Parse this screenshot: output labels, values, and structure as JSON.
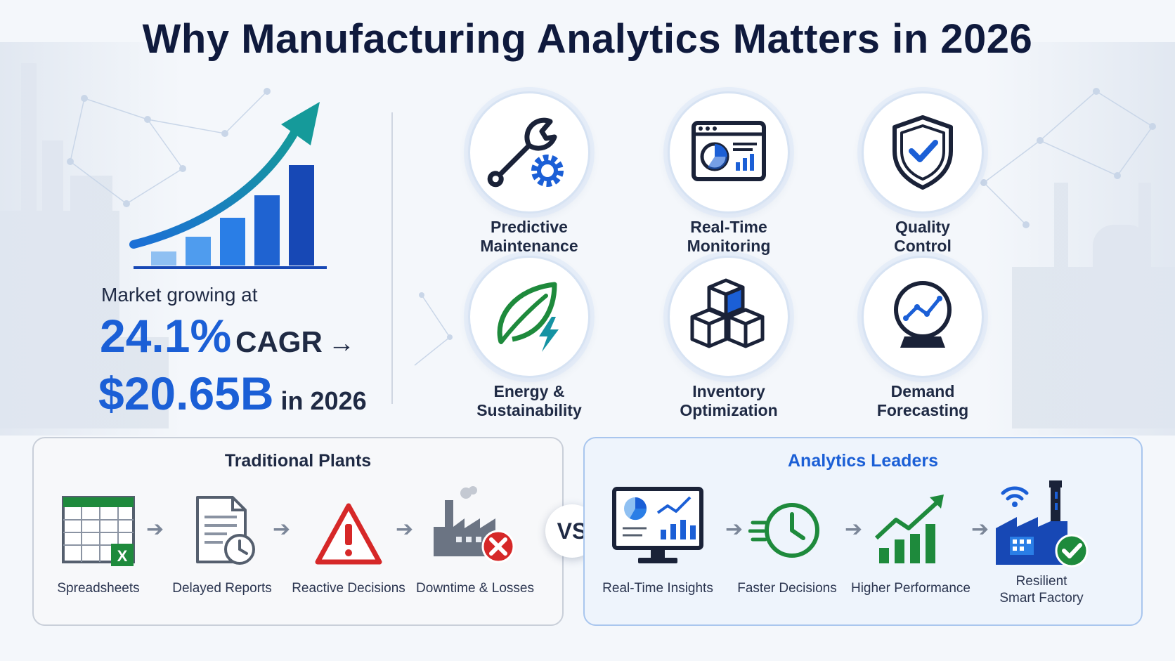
{
  "title": "Why Manufacturing Analytics Matters in 2026",
  "market": {
    "intro": "Market growing at",
    "cagr_value": "24.1%",
    "cagr_label": "CAGR",
    "arrow": "→",
    "market_value": "$20.65B",
    "market_year": "in 2026"
  },
  "features": [
    {
      "line1": "Predictive",
      "line2": "Maintenance",
      "icon": "wrench-gear-icon"
    },
    {
      "line1": "Real-Time",
      "line2": "Monitoring",
      "icon": "dashboard-monitor-icon"
    },
    {
      "line1": "Quality",
      "line2": "Control",
      "icon": "shield-check-icon"
    },
    {
      "line1": "Energy &",
      "line2": "Sustainability",
      "icon": "leaf-lightning-icon"
    },
    {
      "line1": "Inventory",
      "line2": "Optimization",
      "icon": "boxes-icon"
    },
    {
      "line1": "Demand",
      "line2": "Forecasting",
      "icon": "crystal-ball-icon"
    }
  ],
  "comparison": {
    "traditional": {
      "title": "Traditional Plants",
      "steps": [
        {
          "label": "Spreadsheets",
          "icon": "spreadsheet-icon"
        },
        {
          "label": "Delayed Reports",
          "icon": "report-clock-icon"
        },
        {
          "label": "Reactive Decisions",
          "icon": "warning-icon"
        },
        {
          "label": "Downtime & Losses",
          "icon": "factory-error-icon"
        }
      ]
    },
    "vs": "VS",
    "leaders": {
      "title": "Analytics Leaders",
      "steps": [
        {
          "label": "Real-Time Insights",
          "icon": "monitor-charts-icon"
        },
        {
          "label": "Faster Decisions",
          "icon": "fast-clock-icon"
        },
        {
          "label": "Higher Performance",
          "icon": "rising-bars-icon"
        },
        {
          "label_line1": "Resilient",
          "label_line2": "Smart Factory",
          "icon": "smart-factory-icon"
        }
      ]
    }
  },
  "colors": {
    "accent_blue": "#1b5fd6",
    "dark_navy": "#0f1a3d",
    "green": "#1e8a3c",
    "red": "#d62828",
    "teal": "#1593a3"
  }
}
